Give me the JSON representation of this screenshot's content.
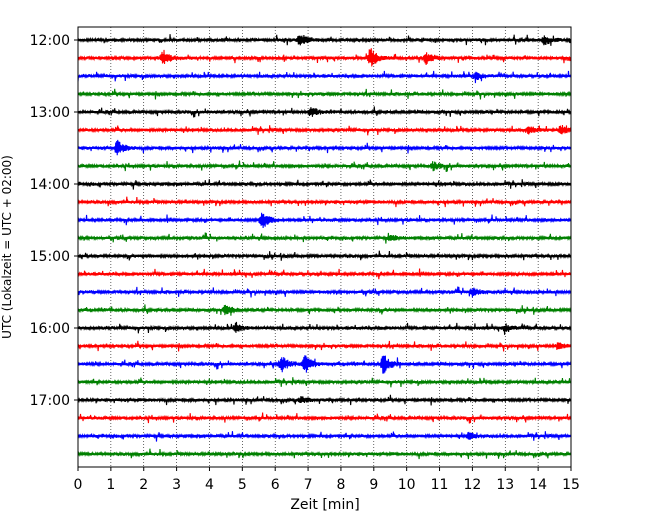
{
  "chart_data": {
    "type": "line",
    "title": "",
    "xlabel": "Zeit  [min]",
    "ylabel": "UTC (Lokalzeit = UTC + 02:00)",
    "xlim": [
      0,
      15
    ],
    "x_ticks": [
      0,
      1,
      2,
      3,
      4,
      5,
      6,
      7,
      8,
      9,
      10,
      11,
      12,
      13,
      14,
      15
    ],
    "y_tick_labels": [
      "12:00",
      "13:00",
      "14:00",
      "15:00",
      "16:00",
      "17:00"
    ],
    "trace_start_times": [
      "12:00",
      "12:15",
      "12:30",
      "12:45",
      "13:00",
      "13:15",
      "13:30",
      "13:45",
      "14:00",
      "14:15",
      "14:30",
      "14:45",
      "15:00",
      "15:15",
      "15:30",
      "15:45",
      "16:00",
      "16:15",
      "16:30",
      "16:45",
      "17:00",
      "17:15",
      "17:30",
      "17:45"
    ],
    "trace_colors": [
      "#000000",
      "#ff0000",
      "#0000ff",
      "#008000"
    ],
    "grid": "vertical dotted",
    "events": [
      {
        "trace": 0,
        "minute": 6.75,
        "amplitude": 0.7
      },
      {
        "trace": 0,
        "minute": 14.2,
        "amplitude": 0.5
      },
      {
        "trace": 1,
        "minute": 2.6,
        "amplitude": 0.7
      },
      {
        "trace": 1,
        "minute": 8.9,
        "amplitude": 1.0
      },
      {
        "trace": 1,
        "minute": 10.6,
        "amplitude": 0.6
      },
      {
        "trace": 2,
        "minute": 12.1,
        "amplitude": 0.4
      },
      {
        "trace": 4,
        "minute": 7.1,
        "amplitude": 0.4
      },
      {
        "trace": 5,
        "minute": 14.7,
        "amplitude": 0.5
      },
      {
        "trace": 5,
        "minute": 13.7,
        "amplitude": 0.4
      },
      {
        "trace": 6,
        "minute": 1.2,
        "amplitude": 0.7
      },
      {
        "trace": 7,
        "minute": 10.8,
        "amplitude": 0.4
      },
      {
        "trace": 10,
        "minute": 5.6,
        "amplitude": 1.0
      },
      {
        "trace": 11,
        "minute": 9.5,
        "amplitude": 0.3
      },
      {
        "trace": 14,
        "minute": 12.0,
        "amplitude": 0.4
      },
      {
        "trace": 15,
        "minute": 4.5,
        "amplitude": 0.6
      },
      {
        "trace": 16,
        "minute": 4.8,
        "amplitude": 0.5
      },
      {
        "trace": 16,
        "minute": 13.0,
        "amplitude": 0.4
      },
      {
        "trace": 17,
        "minute": 14.6,
        "amplitude": 0.3
      },
      {
        "trace": 18,
        "minute": 6.2,
        "amplitude": 0.8
      },
      {
        "trace": 18,
        "minute": 6.9,
        "amplitude": 0.9
      },
      {
        "trace": 18,
        "minute": 9.3,
        "amplitude": 1.1
      },
      {
        "trace": 20,
        "minute": 6.8,
        "amplitude": 0.3
      },
      {
        "trace": 22,
        "minute": 11.9,
        "amplitude": 0.3
      }
    ]
  }
}
